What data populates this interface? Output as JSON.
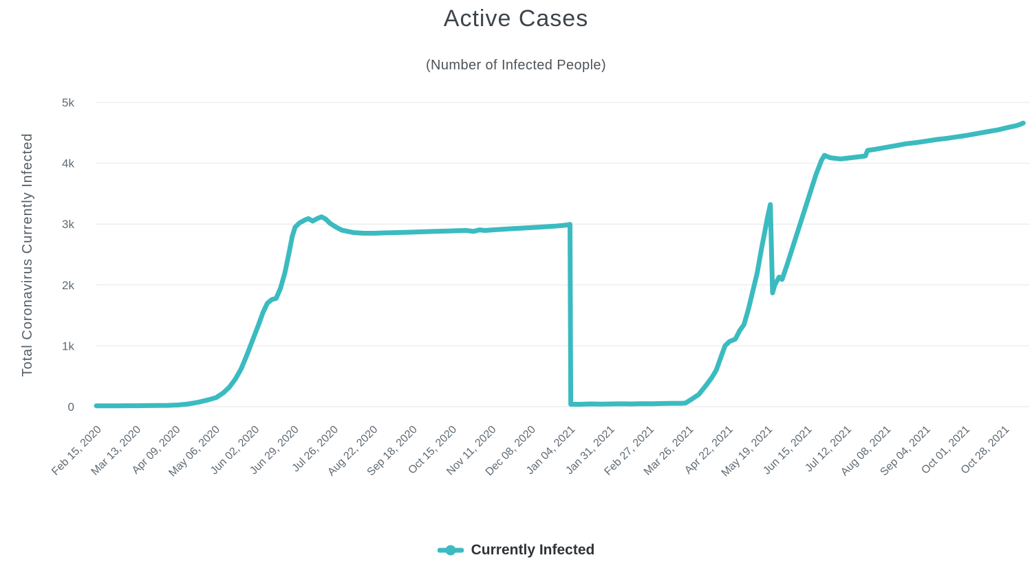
{
  "chart_data": {
    "type": "line",
    "title": "Active Cases",
    "subtitle": "(Number of Infected People)",
    "xlabel": "",
    "ylabel": "Total Coronavirus Currently Infected",
    "ylim": [
      0,
      5000
    ],
    "grid": "horizontal",
    "legend_position": "bottom-center",
    "y_ticks": [
      {
        "value": 0,
        "label": "0"
      },
      {
        "value": 1000,
        "label": "1k"
      },
      {
        "value": 2000,
        "label": "2k"
      },
      {
        "value": 3000,
        "label": "3k"
      },
      {
        "value": 4000,
        "label": "4k"
      },
      {
        "value": 5000,
        "label": "5k"
      }
    ],
    "x_tick_labels": [
      "Feb 15, 2020",
      "Mar 13, 2020",
      "Apr 09, 2020",
      "May 06, 2020",
      "Jun 02, 2020",
      "Jun 29, 2020",
      "Jul 26, 2020",
      "Aug 22, 2020",
      "Sep 18, 2020",
      "Oct 15, 2020",
      "Nov 11, 2020",
      "Dec 08, 2020",
      "Jan 04, 2021",
      "Jan 31, 2021",
      "Feb 27, 2021",
      "Mar 26, 2021",
      "Apr 22, 2021",
      "May 19, 2021",
      "Jun 15, 2021",
      "Jul 12, 2021",
      "Aug 08, 2021",
      "Sep 04, 2021",
      "Oct 01, 2021",
      "Oct 28, 2021"
    ],
    "x_tick_days": [
      0,
      27,
      54,
      81,
      108,
      135,
      162,
      189,
      216,
      243,
      270,
      297,
      324,
      351,
      378,
      405,
      432,
      459,
      486,
      513,
      540,
      567,
      594,
      621
    ],
    "series": [
      {
        "name": "Currently Infected",
        "color": "#3bbbc0",
        "points_day_value": [
          [
            0,
            15
          ],
          [
            7,
            15
          ],
          [
            14,
            15
          ],
          [
            21,
            16
          ],
          [
            28,
            16
          ],
          [
            35,
            18
          ],
          [
            42,
            20
          ],
          [
            49,
            22
          ],
          [
            56,
            28
          ],
          [
            63,
            45
          ],
          [
            70,
            75
          ],
          [
            77,
            115
          ],
          [
            82,
            150
          ],
          [
            87,
            230
          ],
          [
            91,
            320
          ],
          [
            95,
            450
          ],
          [
            99,
            620
          ],
          [
            103,
            850
          ],
          [
            107,
            1100
          ],
          [
            111,
            1350
          ],
          [
            114,
            1550
          ],
          [
            117,
            1700
          ],
          [
            120,
            1760
          ],
          [
            123,
            1780
          ],
          [
            126,
            1950
          ],
          [
            129,
            2200
          ],
          [
            132,
            2550
          ],
          [
            134,
            2800
          ],
          [
            136,
            2950
          ],
          [
            139,
            3020
          ],
          [
            142,
            3060
          ],
          [
            145,
            3090
          ],
          [
            148,
            3050
          ],
          [
            151,
            3090
          ],
          [
            154,
            3120
          ],
          [
            157,
            3080
          ],
          [
            160,
            3010
          ],
          [
            164,
            2950
          ],
          [
            168,
            2900
          ],
          [
            172,
            2880
          ],
          [
            176,
            2860
          ],
          [
            183,
            2850
          ],
          [
            190,
            2850
          ],
          [
            197,
            2855
          ],
          [
            204,
            2860
          ],
          [
            211,
            2865
          ],
          [
            218,
            2870
          ],
          [
            225,
            2875
          ],
          [
            232,
            2880
          ],
          [
            239,
            2885
          ],
          [
            246,
            2890
          ],
          [
            253,
            2895
          ],
          [
            258,
            2880
          ],
          [
            262,
            2905
          ],
          [
            266,
            2895
          ],
          [
            271,
            2905
          ],
          [
            278,
            2915
          ],
          [
            285,
            2925
          ],
          [
            292,
            2935
          ],
          [
            299,
            2945
          ],
          [
            306,
            2955
          ],
          [
            313,
            2965
          ],
          [
            318,
            2975
          ],
          [
            322,
            2985
          ],
          [
            324,
            2995
          ],
          [
            324.5,
            40
          ],
          [
            331,
            40
          ],
          [
            338,
            45
          ],
          [
            345,
            42
          ],
          [
            352,
            45
          ],
          [
            359,
            48
          ],
          [
            366,
            45
          ],
          [
            373,
            50
          ],
          [
            380,
            48
          ],
          [
            387,
            52
          ],
          [
            394,
            55
          ],
          [
            400,
            55
          ],
          [
            403,
            60
          ],
          [
            407,
            120
          ],
          [
            412,
            200
          ],
          [
            417,
            350
          ],
          [
            421,
            480
          ],
          [
            424,
            600
          ],
          [
            427,
            800
          ],
          [
            430,
            1000
          ],
          [
            433,
            1070
          ],
          [
            437,
            1110
          ],
          [
            440,
            1250
          ],
          [
            443,
            1350
          ],
          [
            446,
            1600
          ],
          [
            449,
            1900
          ],
          [
            452,
            2200
          ],
          [
            455,
            2600
          ],
          [
            457,
            2850
          ],
          [
            459,
            3100
          ],
          [
            461,
            3320
          ],
          [
            462.5,
            1870
          ],
          [
            464,
            2000
          ],
          [
            467,
            2130
          ],
          [
            469,
            2090
          ],
          [
            472,
            2300
          ],
          [
            476,
            2600
          ],
          [
            480,
            2900
          ],
          [
            484,
            3200
          ],
          [
            488,
            3500
          ],
          [
            492,
            3800
          ],
          [
            496,
            4050
          ],
          [
            498,
            4130
          ],
          [
            502,
            4090
          ],
          [
            509,
            4070
          ],
          [
            516,
            4090
          ],
          [
            523,
            4110
          ],
          [
            526,
            4120
          ],
          [
            527.5,
            4210
          ],
          [
            533,
            4230
          ],
          [
            540,
            4260
          ],
          [
            547,
            4290
          ],
          [
            554,
            4320
          ],
          [
            561,
            4340
          ],
          [
            568,
            4365
          ],
          [
            575,
            4390
          ],
          [
            582,
            4410
          ],
          [
            589,
            4435
          ],
          [
            596,
            4460
          ],
          [
            603,
            4490
          ],
          [
            610,
            4520
          ],
          [
            617,
            4550
          ],
          [
            624,
            4590
          ],
          [
            629,
            4615
          ],
          [
            632,
            4640
          ],
          [
            634,
            4660
          ]
        ]
      }
    ]
  },
  "colors": {
    "line": "#3bbbc0",
    "grid": "#e6e6e6",
    "tick_label": "#5f6a73",
    "axis_title": "#565d63",
    "title": "#3d444c",
    "subtitle": "#4d5358",
    "legend_text": "#2e3338",
    "background": "#ffffff"
  }
}
